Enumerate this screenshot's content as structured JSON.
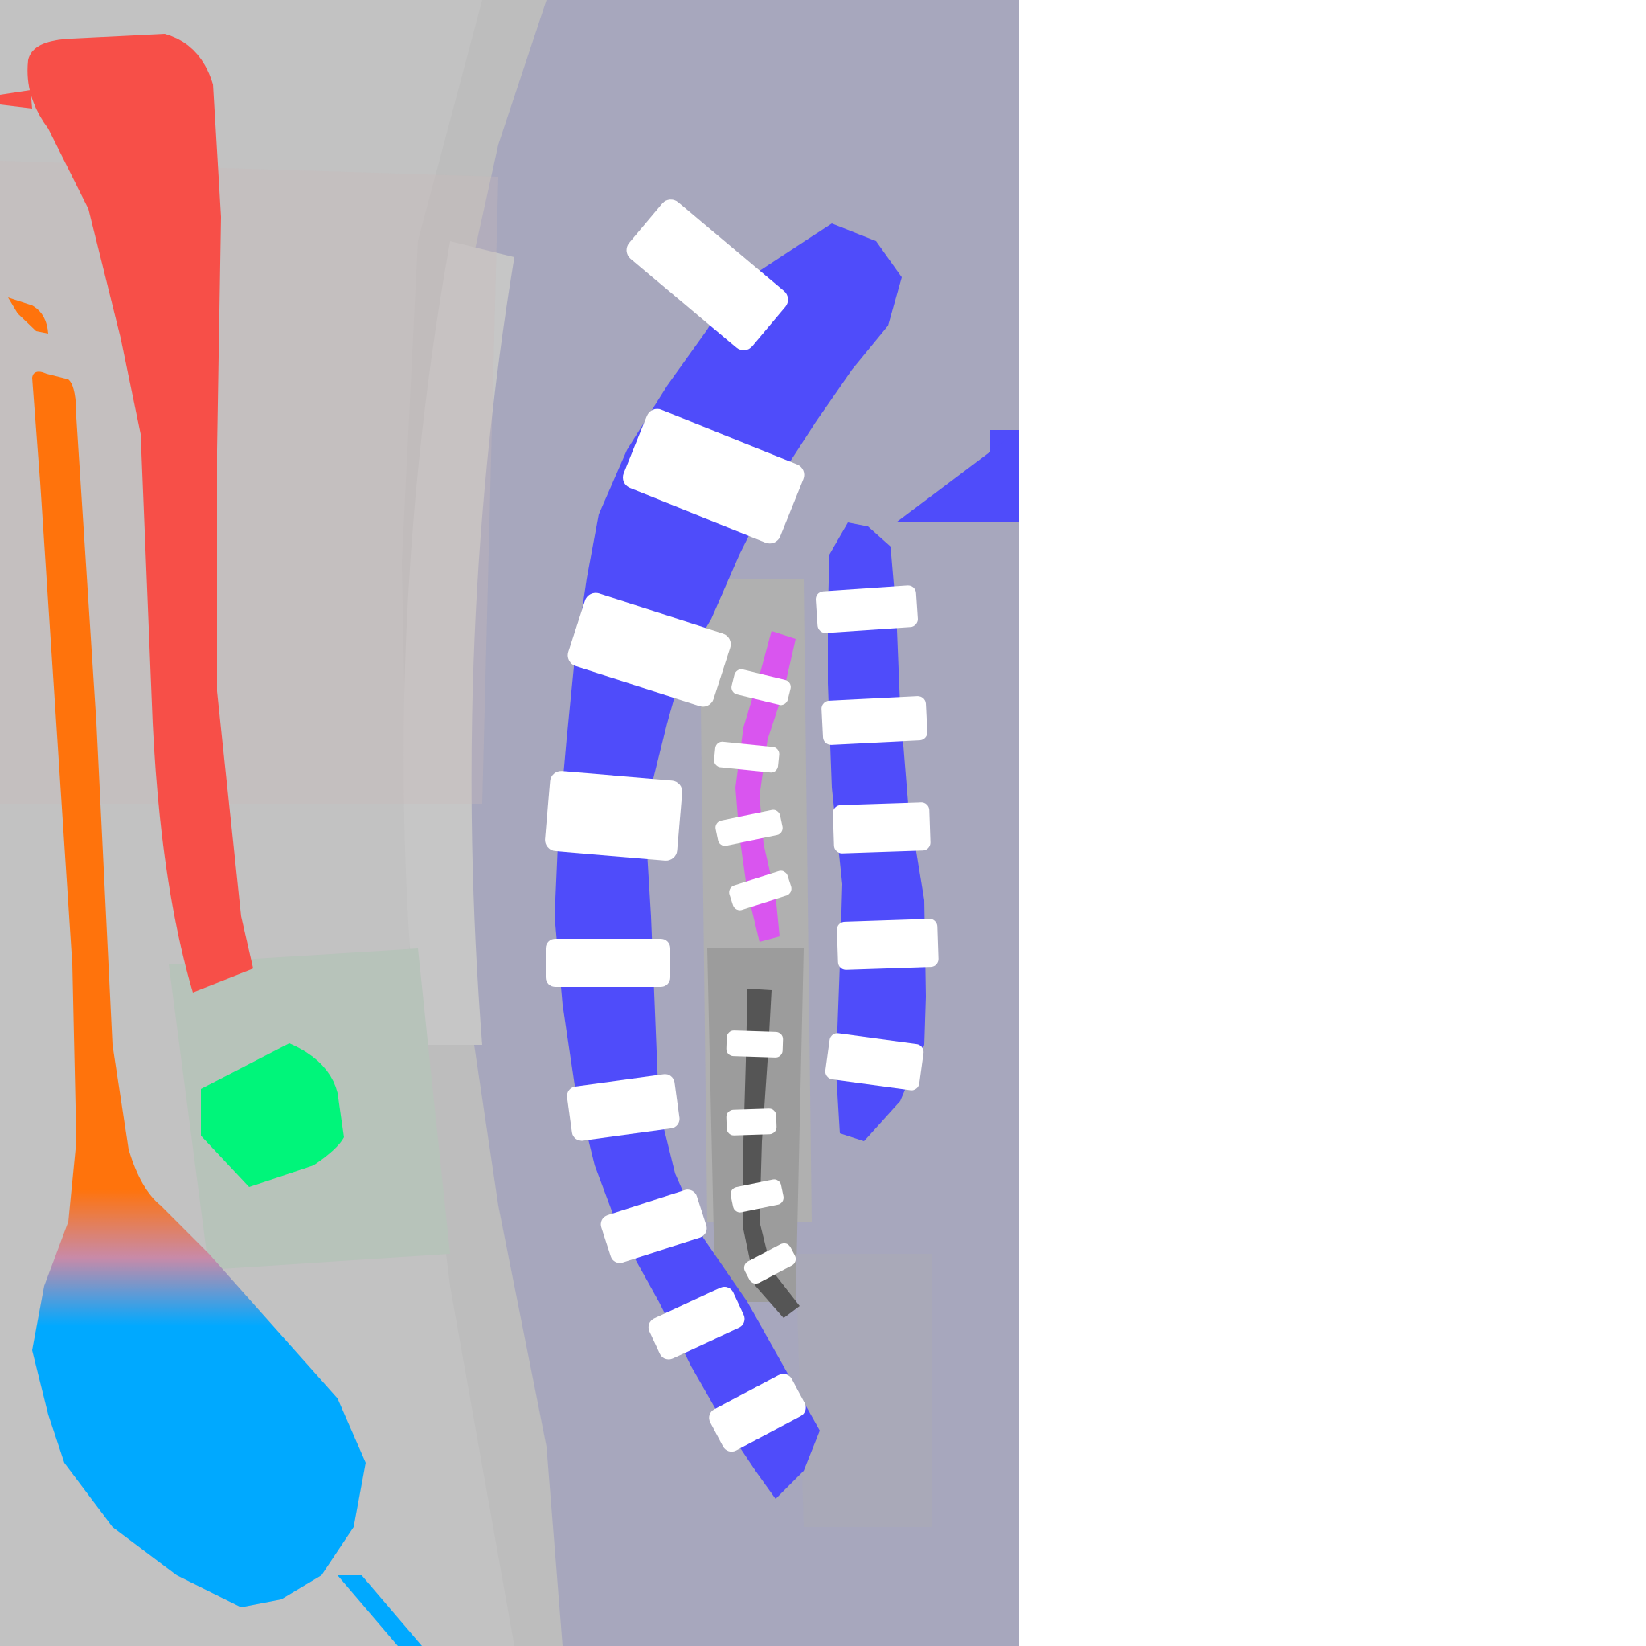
{
  "texture": {
    "description_visible_text": "",
    "colors": {
      "background_right": "#ffffff",
      "padding_gray": "#bdbdbd",
      "bleed_blue_gray": "#a4a4c4",
      "bleed_mint": "#b8c4bc",
      "red_bone": "#f74f48",
      "orange_bone": "#ff730c",
      "cyan_bone": "#00a9ff",
      "green_patch": "#00f57a",
      "blue_chain": "#4f4cfa",
      "magenta_chain": "#d955ef",
      "dark_chain": "#555555",
      "white_band": "#ffffff"
    }
  }
}
